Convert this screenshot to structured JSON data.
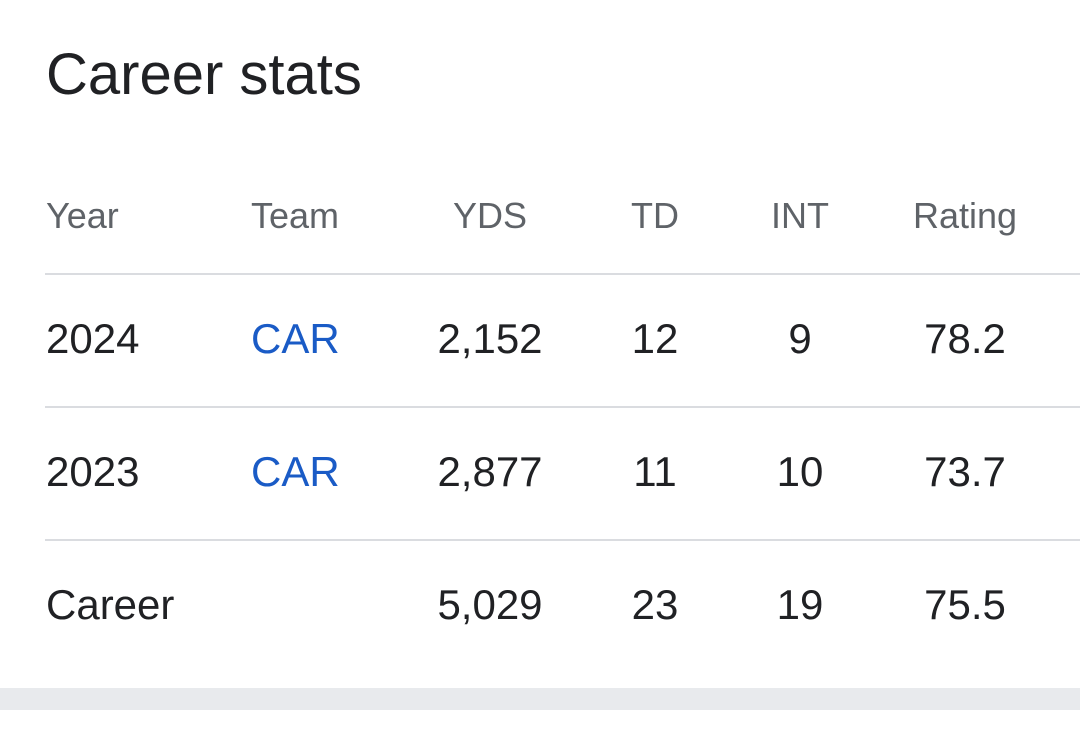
{
  "card": {
    "title": "Career stats"
  },
  "table": {
    "headers": {
      "year": "Year",
      "team": "Team",
      "yds": "YDS",
      "td": "TD",
      "int": "INT",
      "rating": "Rating"
    },
    "rows": [
      {
        "year": "2024",
        "team": "CAR",
        "yds": "2,152",
        "td": "12",
        "int": "9",
        "rating": "78.2"
      },
      {
        "year": "2023",
        "team": "CAR",
        "yds": "2,877",
        "td": "11",
        "int": "10",
        "rating": "73.7"
      },
      {
        "year": "Career",
        "team": "",
        "yds": "5,029",
        "td": "23",
        "int": "19",
        "rating": "75.5"
      }
    ]
  },
  "colors": {
    "title": "#202124",
    "header_text": "#5f6368",
    "body_text": "#202124",
    "link": "#1a5bc6",
    "divider": "#dadce0",
    "footer_band": "#e8eaed"
  }
}
